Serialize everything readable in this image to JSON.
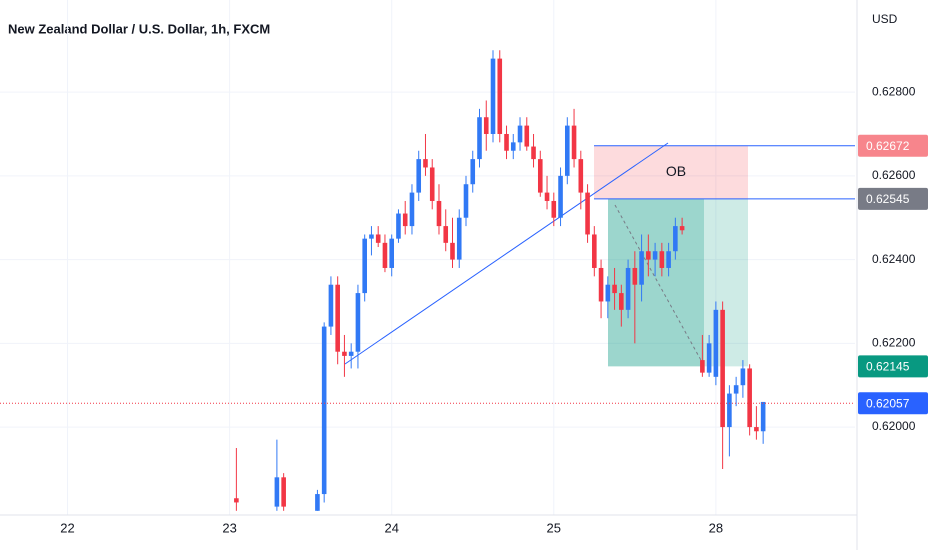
{
  "chart_data": {
    "type": "candlestick",
    "title": "New Zealand Dollar / U.S. Dollar, 1h, FXCM",
    "y_axis_label": "USD",
    "annotation": "OB",
    "up_color": "#3179f5",
    "down_color": "#f23645",
    "ylim": [
      0.6179,
      0.6302
    ],
    "yticks": [
      {
        "value": 0.62,
        "label": "0.62000"
      },
      {
        "value": 0.622,
        "label": "0.62200"
      },
      {
        "value": 0.624,
        "label": "0.62400"
      },
      {
        "value": 0.626,
        "label": "0.62600"
      },
      {
        "value": 0.628,
        "label": "0.62800"
      }
    ],
    "xlim": [
      -10,
      116.6
    ],
    "xticks": [
      {
        "value": 0,
        "label": "22"
      },
      {
        "value": 24,
        "label": "23"
      },
      {
        "value": 48,
        "label": "24"
      },
      {
        "value": 72,
        "label": "25"
      },
      {
        "value": 96,
        "label": "28"
      }
    ],
    "grid": true,
    "price_labels": [
      {
        "value": 0.62672,
        "color": "#f7858c"
      },
      {
        "value": 0.62545,
        "color": "#787b86"
      },
      {
        "value": 0.62145,
        "color": "#089981"
      },
      {
        "value": 0.62057,
        "color": "#2962ff"
      }
    ],
    "x": [
      25,
      31,
      32,
      37,
      38,
      39,
      40,
      41,
      42,
      43,
      44,
      45,
      46,
      47,
      48,
      49,
      50,
      51,
      52,
      53,
      54,
      55,
      56,
      57,
      58,
      59,
      60,
      61,
      62,
      63,
      64,
      65,
      66,
      67,
      68,
      69,
      70,
      71,
      72,
      73,
      74,
      75,
      76,
      77,
      78,
      79,
      80,
      81,
      82,
      83,
      84,
      85,
      86,
      87,
      88,
      89,
      90,
      91,
      94,
      95,
      96,
      97,
      98,
      99,
      100,
      101,
      102,
      103
    ],
    "open": [
      0.6183,
      0.6181,
      0.6188,
      0.618,
      0.6184,
      0.6224,
      0.6234,
      0.6218,
      0.6217,
      0.6218,
      0.6232,
      0.6245,
      0.6246,
      0.6244,
      0.6238,
      0.6245,
      0.6251,
      0.6248,
      0.6256,
      0.6264,
      0.6262,
      0.6254,
      0.6248,
      0.6244,
      0.624,
      0.625,
      0.6258,
      0.6264,
      0.6274,
      0.627,
      0.6288,
      0.627,
      0.6266,
      0.6268,
      0.6272,
      0.6267,
      0.6264,
      0.6256,
      0.6254,
      0.625,
      0.626,
      0.6272,
      0.6264,
      0.6256,
      0.6246,
      0.6238,
      0.623,
      0.6234,
      0.6232,
      0.6228,
      0.6238,
      0.6234,
      0.6242,
      0.624,
      0.6242,
      0.6238,
      0.6242,
      0.6248,
      0.6216,
      0.6213,
      0.6212,
      0.6228,
      0.62,
      0.6208,
      0.621,
      0.6214,
      0.62,
      0.6199
    ],
    "high": [
      0.6195,
      0.6197,
      0.6189,
      0.6185,
      0.6225,
      0.6236,
      0.6236,
      0.6222,
      0.622,
      0.6234,
      0.6246,
      0.6248,
      0.6248,
      0.6246,
      0.6246,
      0.6252,
      0.6254,
      0.6258,
      0.6266,
      0.627,
      0.6264,
      0.6258,
      0.6252,
      0.625,
      0.6252,
      0.626,
      0.6266,
      0.6276,
      0.6278,
      0.629,
      0.629,
      0.6272,
      0.627,
      0.6274,
      0.6274,
      0.627,
      0.6266,
      0.626,
      0.6256,
      0.6262,
      0.6274,
      0.6276,
      0.6266,
      0.6258,
      0.6248,
      0.624,
      0.6236,
      0.6238,
      0.6234,
      0.624,
      0.6242,
      0.6246,
      0.6246,
      0.6244,
      0.6244,
      0.6244,
      0.625,
      0.625,
      0.6222,
      0.6222,
      0.623,
      0.623,
      0.621,
      0.6212,
      0.6216,
      0.6215,
      0.6205,
      0.6206
    ],
    "low": [
      0.618,
      0.618,
      0.618,
      0.618,
      0.6182,
      0.6222,
      0.6215,
      0.6212,
      0.6214,
      0.6214,
      0.623,
      0.6241,
      0.6243,
      0.6237,
      0.6236,
      0.6244,
      0.6246,
      0.6246,
      0.6254,
      0.626,
      0.6252,
      0.6246,
      0.6242,
      0.6238,
      0.6238,
      0.6248,
      0.6256,
      0.6262,
      0.6266,
      0.6268,
      0.6268,
      0.6264,
      0.6264,
      0.6266,
      0.6266,
      0.6262,
      0.6255,
      0.6252,
      0.6248,
      0.6248,
      0.6258,
      0.6262,
      0.6252,
      0.6244,
      0.6236,
      0.6226,
      0.6226,
      0.6228,
      0.6224,
      0.6226,
      0.622,
      0.623,
      0.6236,
      0.6236,
      0.6236,
      0.6236,
      0.624,
      0.6246,
      0.6212,
      0.6212,
      0.621,
      0.619,
      0.6193,
      0.6205,
      0.6207,
      0.6198,
      0.6197,
      0.6196
    ],
    "close": [
      0.6182,
      0.6188,
      0.6181,
      0.6184,
      0.6224,
      0.6234,
      0.6218,
      0.6217,
      0.6218,
      0.6232,
      0.6245,
      0.6246,
      0.6244,
      0.6238,
      0.6245,
      0.6251,
      0.6248,
      0.6256,
      0.6264,
      0.6262,
      0.6254,
      0.6248,
      0.6244,
      0.624,
      0.625,
      0.6258,
      0.6264,
      0.6274,
      0.627,
      0.6288,
      0.627,
      0.6266,
      0.6268,
      0.6272,
      0.6267,
      0.6264,
      0.6256,
      0.6254,
      0.625,
      0.626,
      0.6272,
      0.6264,
      0.6256,
      0.6246,
      0.6238,
      0.623,
      0.6234,
      0.6232,
      0.6228,
      0.6238,
      0.6234,
      0.6242,
      0.624,
      0.6242,
      0.6238,
      0.6242,
      0.6248,
      0.6247,
      0.6213,
      0.622,
      0.6228,
      0.62,
      0.6208,
      0.621,
      0.6214,
      0.62,
      0.6199,
      0.6206
    ]
  }
}
